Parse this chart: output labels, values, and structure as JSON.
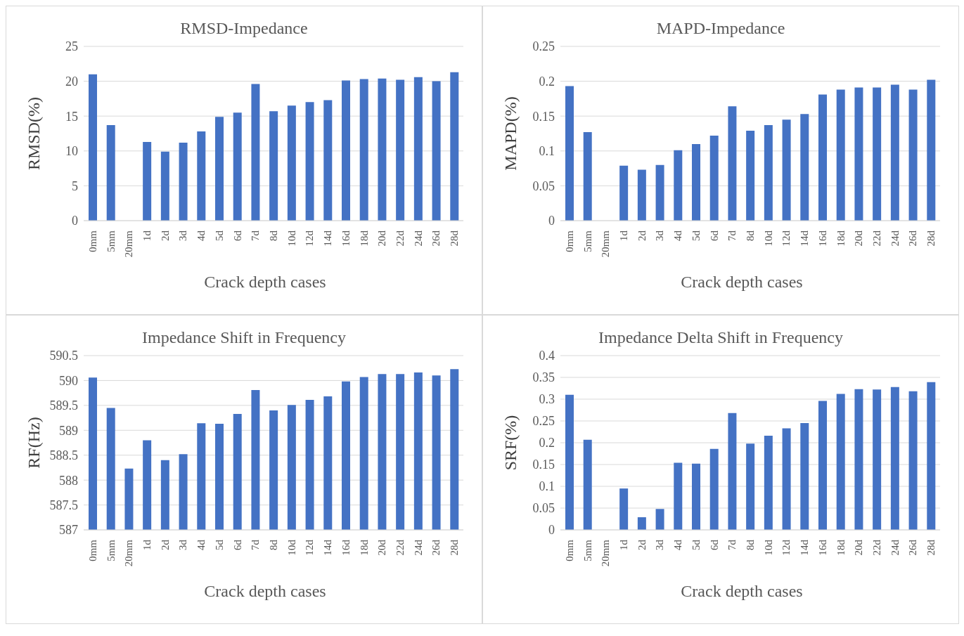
{
  "chart_data": [
    {
      "type": "bar",
      "title": "RMSD-Impedance",
      "xlabel": "Crack depth cases",
      "ylabel": "RMSD(%)",
      "categories": [
        "0mm",
        "5mm",
        "20mm",
        "1d",
        "2d",
        "3d",
        "4d",
        "5d",
        "6d",
        "7d",
        "8d",
        "10d",
        "12d",
        "14d",
        "16d",
        "18d",
        "20d",
        "22d",
        "24d",
        "26d",
        "28d"
      ],
      "values": [
        21.0,
        13.7,
        0,
        11.3,
        9.9,
        11.2,
        12.8,
        14.9,
        15.5,
        19.6,
        15.7,
        16.5,
        17.0,
        17.3,
        20.1,
        20.3,
        20.4,
        20.2,
        20.6,
        20.0,
        21.3
      ],
      "color": "#4472c4",
      "ylim": [
        0,
        25
      ],
      "yticks": [
        0,
        5,
        10,
        15,
        20,
        25
      ],
      "grid": "y"
    },
    {
      "type": "bar",
      "title": "MAPD-Impedance",
      "xlabel": "Crack depth cases",
      "ylabel": "MAPD(%)",
      "categories": [
        "0mm",
        "5mm",
        "20mm",
        "1d",
        "2d",
        "3d",
        "4d",
        "5d",
        "6d",
        "7d",
        "8d",
        "10d",
        "12d",
        "14d",
        "16d",
        "18d",
        "20d",
        "22d",
        "24d",
        "26d",
        "28d"
      ],
      "values": [
        0.193,
        0.127,
        0,
        0.079,
        0.073,
        0.08,
        0.101,
        0.11,
        0.122,
        0.164,
        0.129,
        0.137,
        0.145,
        0.153,
        0.181,
        0.188,
        0.191,
        0.191,
        0.195,
        0.188,
        0.202
      ],
      "color": "#4472c4",
      "ylim": [
        0,
        0.25
      ],
      "yticks": [
        0,
        0.05,
        0.1,
        0.15,
        0.2,
        0.25
      ],
      "grid": "y"
    },
    {
      "type": "bar",
      "title": "Impedance Shift in Frequency",
      "xlabel": "Crack depth cases",
      "ylabel": "RF(Hz)",
      "categories": [
        "0mm",
        "5mm",
        "20mm",
        "1d",
        "2d",
        "3d",
        "4d",
        "5d",
        "6d",
        "7d",
        "8d",
        "10d",
        "12d",
        "14d",
        "16d",
        "18d",
        "20d",
        "22d",
        "24d",
        "26d",
        "28d"
      ],
      "values": [
        590.06,
        589.45,
        588.23,
        588.8,
        588.4,
        588.52,
        589.14,
        589.13,
        589.33,
        589.81,
        589.4,
        589.51,
        589.61,
        589.68,
        589.98,
        590.07,
        590.13,
        590.13,
        590.16,
        590.1,
        590.23
      ],
      "color": "#4472c4",
      "ylim": [
        587,
        590.5
      ],
      "yticks": [
        587,
        587.5,
        588,
        588.5,
        589,
        589.5,
        590,
        590.5
      ],
      "grid": "y"
    },
    {
      "type": "bar",
      "title": "Impedance Delta Shift in Frequency",
      "xlabel": "Crack depth cases",
      "ylabel": "SRF(%)",
      "categories": [
        "0mm",
        "5mm",
        "20mm",
        "1d",
        "2d",
        "3d",
        "4d",
        "5d",
        "6d",
        "7d",
        "8d",
        "10d",
        "12d",
        "14d",
        "16d",
        "18d",
        "20d",
        "22d",
        "24d",
        "26d",
        "28d"
      ],
      "values": [
        0.31,
        0.207,
        0,
        0.095,
        0.029,
        0.048,
        0.154,
        0.152,
        0.186,
        0.268,
        0.198,
        0.216,
        0.233,
        0.245,
        0.296,
        0.312,
        0.323,
        0.322,
        0.328,
        0.318,
        0.339
      ],
      "color": "#4472c4",
      "ylim": [
        0,
        0.4
      ],
      "yticks": [
        0,
        0.05,
        0.1,
        0.15,
        0.2,
        0.25,
        0.3,
        0.35,
        0.4
      ],
      "grid": "y"
    }
  ]
}
